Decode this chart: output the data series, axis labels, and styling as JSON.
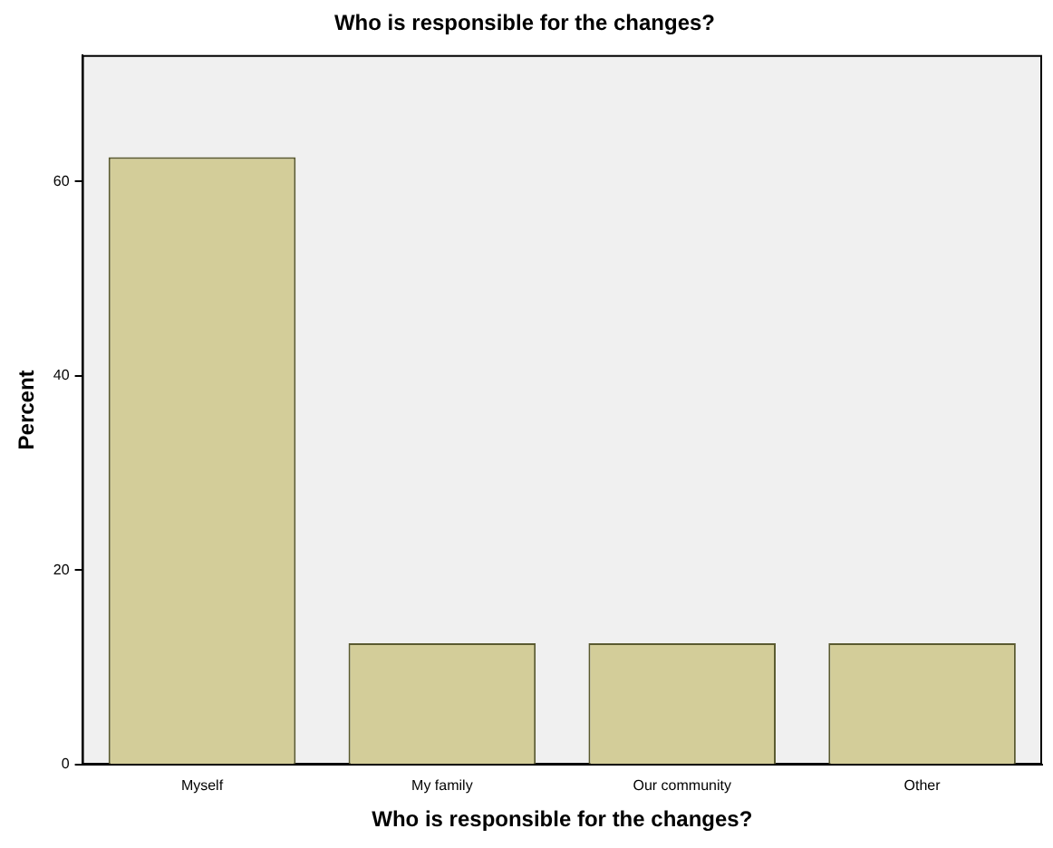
{
  "chart_data": {
    "type": "bar",
    "title": "Who is responsible for the changes?",
    "xlabel": "Who is responsible for the changes?",
    "ylabel": "Percent",
    "categories": [
      "Myself",
      "My family",
      "Our community",
      "Other"
    ],
    "values": [
      62.5,
      12.5,
      12.5,
      12.5
    ],
    "color": "#d3cd99",
    "ylim": [
      0,
      73
    ],
    "yticks": [
      0,
      20,
      40,
      60
    ],
    "grid": false,
    "legend": false
  }
}
